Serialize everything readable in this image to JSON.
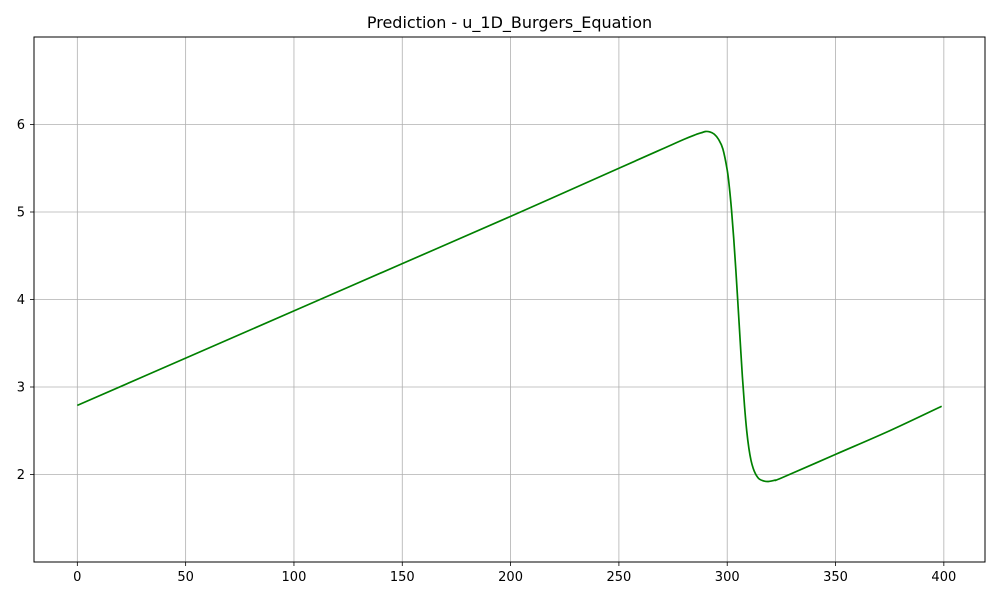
{
  "chart_data": {
    "type": "line",
    "title": "Prediction - u_1D_Burgers_Equation",
    "xlabel": "",
    "ylabel": "",
    "xlim": [
      -20,
      419
    ],
    "ylim": [
      1.0,
      7.0
    ],
    "grid": true,
    "legend": "none",
    "xticks": [
      0,
      50,
      100,
      150,
      200,
      250,
      300,
      350,
      400
    ],
    "yticks": [
      2,
      3,
      4,
      5,
      6
    ],
    "series": [
      {
        "color": "#008000",
        "points": [
          [
            0,
            2.79
          ],
          [
            50,
            3.33
          ],
          [
            100,
            3.87
          ],
          [
            150,
            4.41
          ],
          [
            200,
            4.95
          ],
          [
            250,
            5.5
          ],
          [
            270,
            5.72
          ],
          [
            280,
            5.83
          ],
          [
            285,
            5.88
          ],
          [
            288,
            5.905
          ],
          [
            290,
            5.92
          ],
          [
            292,
            5.915
          ],
          [
            294,
            5.89
          ],
          [
            296,
            5.83
          ],
          [
            298,
            5.72
          ],
          [
            300,
            5.48
          ],
          [
            301,
            5.28
          ],
          [
            302,
            5.02
          ],
          [
            303,
            4.7
          ],
          [
            304,
            4.33
          ],
          [
            305,
            3.93
          ],
          [
            306,
            3.52
          ],
          [
            307,
            3.12
          ],
          [
            308,
            2.78
          ],
          [
            309,
            2.5
          ],
          [
            310,
            2.3
          ],
          [
            311,
            2.16
          ],
          [
            312,
            2.07
          ],
          [
            313,
            2.01
          ],
          [
            314,
            1.97
          ],
          [
            315,
            1.945
          ],
          [
            317,
            1.925
          ],
          [
            319,
            1.92
          ],
          [
            322,
            1.935
          ],
          [
            325,
            1.96
          ],
          [
            350,
            2.23
          ],
          [
            375,
            2.5
          ],
          [
            399,
            2.78
          ]
        ]
      }
    ]
  }
}
